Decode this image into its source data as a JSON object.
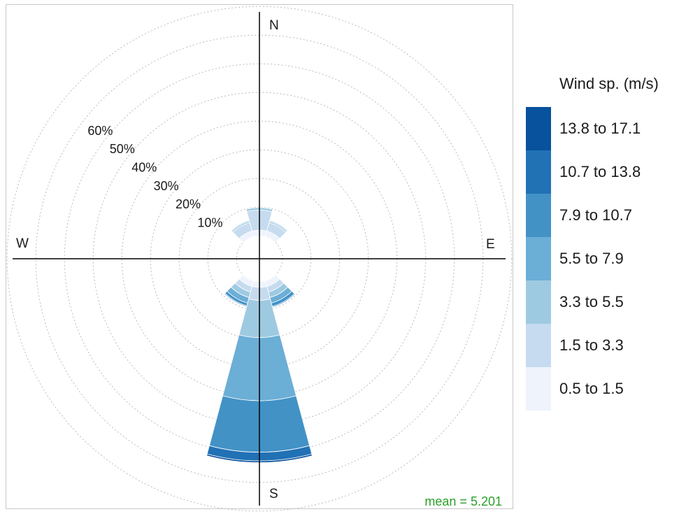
{
  "chart_data": {
    "type": "wind-rose",
    "title": "",
    "units": "%",
    "radial_ticks": [
      {
        "value": 10,
        "label": "10%"
      },
      {
        "value": 20,
        "label": "20%"
      },
      {
        "value": 30,
        "label": "30%"
      },
      {
        "value": 40,
        "label": "40%"
      },
      {
        "value": 50,
        "label": "50%"
      },
      {
        "value": 60,
        "label": "60%"
      }
    ],
    "rmax": 80,
    "compass_labels": {
      "N": "N",
      "E": "E",
      "S": "S",
      "W": "W"
    },
    "legend": {
      "title": "Wind sp. (m/s)",
      "bins": [
        {
          "label": "0.5 to 1.5",
          "color": "#eef3fc"
        },
        {
          "label": "1.5 to 3.3",
          "color": "#c6dbef"
        },
        {
          "label": "3.3 to 5.5",
          "color": "#9ecae1"
        },
        {
          "label": "5.5 to 7.9",
          "color": "#6baed6"
        },
        {
          "label": "7.9 to 10.7",
          "color": "#4292c6"
        },
        {
          "label": "10.7 to 13.8",
          "color": "#2171b5"
        },
        {
          "label": "13.8 to 17.1",
          "color": "#08519c"
        }
      ]
    },
    "sector_width_deg": 30,
    "sectors": [
      {
        "direction": 0,
        "values": [
          2.0,
          7.0,
          0.8,
          0,
          0,
          0,
          0
        ]
      },
      {
        "direction": 30,
        "values": [
          2.0,
          3.0,
          0.5,
          0.3,
          0,
          0,
          0
        ]
      },
      {
        "direction": 150,
        "values": [
          2.0,
          2.0,
          2.0,
          2.0,
          1.2,
          0.3,
          0
        ]
      },
      {
        "direction": 180,
        "values": [
          2.0,
          4.5,
          13.0,
          22.0,
          18.0,
          3.0,
          0.6
        ]
      },
      {
        "direction": 210,
        "values": [
          2.0,
          2.0,
          2.0,
          2.0,
          1.0,
          0.3,
          0
        ]
      },
      {
        "direction": 330,
        "values": [
          2.0,
          3.0,
          0.5,
          0.3,
          0,
          0,
          0
        ]
      }
    ],
    "calm_radius": 8,
    "mean": "mean = 5.201",
    "legend_placement": "right"
  }
}
